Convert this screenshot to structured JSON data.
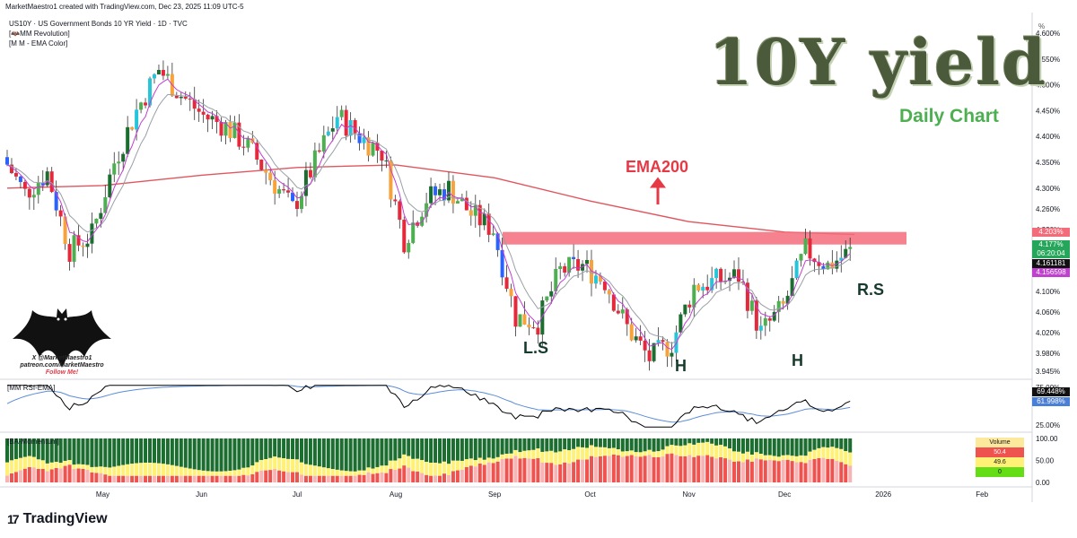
{
  "header": {
    "line1": "MarketMaestro1 created with TradingView.com, Dec 23, 2025 11:09 UTC-5",
    "line2": "US10Y · US Government Bonds 10 YR Yield · 1D · TVC",
    "line3": "[🦇MM Revolution]",
    "line4": "[M M - EMA Color]"
  },
  "brand": {
    "logo": "17",
    "name": "TradingView"
  },
  "overlay": {
    "big_title": "10Y yield",
    "sub_title": "Daily Chart",
    "ema_label": "EMA200",
    "left_shoulder": "L.S",
    "head1": "H",
    "head2": "H",
    "right_shoulder": "R.S",
    "bat_line1": "X @MarketMaestro1",
    "bat_line2": "patreon.com/MarketMaestro",
    "bat_line3": "Follow Me!"
  },
  "price_pills": {
    "resistance": "4.203%",
    "last": "4.177%",
    "countdown": "06:20:04",
    "ema_fast": "4.161181",
    "ema_slow": "4.156598"
  },
  "rsi_pills": {
    "rsi": "69.448%",
    "ema": "61.998%"
  },
  "panels": {
    "rsi_title": "[MM RSI-EMA]",
    "mom_title": "[BA-Momentum]"
  },
  "volume_table": {
    "title": "Volume",
    "r1": "50.4",
    "r2": "49.6",
    "r3": "0"
  },
  "colors": {
    "bull": "#4caf50",
    "bull_dark": "#1b6e2f",
    "bear": "#e5283a",
    "orange": "#f7a23b",
    "blue": "#2962ff",
    "cyan": "#26c6da",
    "ema200": "#e0565f",
    "resistance": "#f36c7a",
    "rsi": "#000000",
    "rsi_ema": "#5b8dd9"
  },
  "chart_data": {
    "type": "candlestick",
    "symbol": "US10Y",
    "ylim": [
      3.935,
      4.64
    ],
    "y_ticks": [
      "4.600%",
      "4.550%",
      "4.500%",
      "4.450%",
      "4.400%",
      "4.350%",
      "4.300%",
      "4.260%",
      "4.220%",
      "4.140%",
      "4.100%",
      "4.060%",
      "4.020%",
      "3.980%",
      "3.945%"
    ],
    "y_unit": "%",
    "x_ticks": [
      "May",
      "Jun",
      "Jul",
      "Aug",
      "Sep",
      "Oct",
      "Nov",
      "Dec",
      "2026",
      "Feb"
    ],
    "resistance_level": 4.203,
    "ema200": [
      {
        "date": "2025-04-01",
        "v": 4.3
      },
      {
        "date": "2025-05-01",
        "v": 4.305
      },
      {
        "date": "2025-06-01",
        "v": 4.325
      },
      {
        "date": "2025-07-01",
        "v": 4.34
      },
      {
        "date": "2025-08-01",
        "v": 4.345
      },
      {
        "date": "2025-09-01",
        "v": 4.32
      },
      {
        "date": "2025-10-01",
        "v": 4.275
      },
      {
        "date": "2025-11-01",
        "v": 4.235
      },
      {
        "date": "2025-12-01",
        "v": 4.215
      },
      {
        "date": "2025-12-23",
        "v": 4.21
      }
    ],
    "closes": [
      {
        "date": "2025-04-01",
        "c": 4.36
      },
      {
        "date": "2025-04-08",
        "c": 4.29
      },
      {
        "date": "2025-04-15",
        "c": 4.33
      },
      {
        "date": "2025-04-22",
        "c": 4.18
      },
      {
        "date": "2025-04-29",
        "c": 4.21
      },
      {
        "date": "2025-05-06",
        "c": 4.35
      },
      {
        "date": "2025-05-13",
        "c": 4.45
      },
      {
        "date": "2025-05-20",
        "c": 4.53
      },
      {
        "date": "2025-05-27",
        "c": 4.48
      },
      {
        "date": "2025-06-03",
        "c": 4.44
      },
      {
        "date": "2025-06-10",
        "c": 4.42
      },
      {
        "date": "2025-06-17",
        "c": 4.38
      },
      {
        "date": "2025-06-24",
        "c": 4.32
      },
      {
        "date": "2025-07-01",
        "c": 4.26
      },
      {
        "date": "2025-07-08",
        "c": 4.35
      },
      {
        "date": "2025-07-15",
        "c": 4.44
      },
      {
        "date": "2025-07-22",
        "c": 4.4
      },
      {
        "date": "2025-07-29",
        "c": 4.37
      },
      {
        "date": "2025-08-05",
        "c": 4.2
      },
      {
        "date": "2025-08-12",
        "c": 4.28
      },
      {
        "date": "2025-08-19",
        "c": 4.3
      },
      {
        "date": "2025-08-26",
        "c": 4.25
      },
      {
        "date": "2025-09-02",
        "c": 4.22
      },
      {
        "date": "2025-09-09",
        "c": 4.05
      },
      {
        "date": "2025-09-16",
        "c": 4.04
      },
      {
        "date": "2025-09-23",
        "c": 4.14
      },
      {
        "date": "2025-09-30",
        "c": 4.15
      },
      {
        "date": "2025-10-07",
        "c": 4.12
      },
      {
        "date": "2025-10-14",
        "c": 4.03
      },
      {
        "date": "2025-10-21",
        "c": 3.97
      },
      {
        "date": "2025-10-28",
        "c": 4.0
      },
      {
        "date": "2025-11-04",
        "c": 4.11
      },
      {
        "date": "2025-11-11",
        "c": 4.12
      },
      {
        "date": "2025-11-18",
        "c": 4.13
      },
      {
        "date": "2025-11-25",
        "c": 4.02
      },
      {
        "date": "2025-12-02",
        "c": 4.07
      },
      {
        "date": "2025-12-09",
        "c": 4.18
      },
      {
        "date": "2025-12-16",
        "c": 4.15
      },
      {
        "date": "2025-12-23",
        "c": 4.177
      }
    ],
    "rsi": {
      "ticks": [
        "75.00%",
        "25.00%"
      ],
      "last": 69.448,
      "ema_last": 61.998
    },
    "momentum": {
      "ticks": [
        "100.00",
        "50.00",
        "0.00"
      ]
    }
  }
}
